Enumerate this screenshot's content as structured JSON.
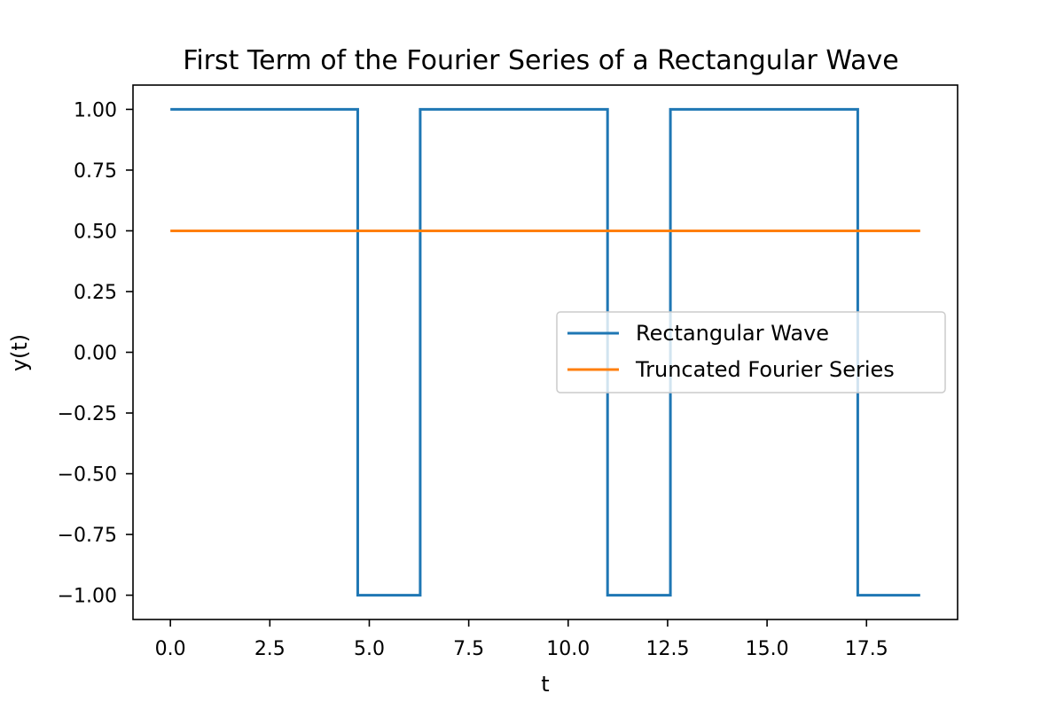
{
  "chart_data": {
    "type": "line",
    "title": "First Term of the Fourier Series of a Rectangular Wave",
    "xlabel": "t",
    "ylabel": "y(t)",
    "xlim": [
      -0.94,
      19.79
    ],
    "ylim": [
      -1.1,
      1.1
    ],
    "xticks": [
      0.0,
      2.5,
      5.0,
      7.5,
      10.0,
      12.5,
      15.0,
      17.5
    ],
    "xtick_labels": [
      "0.0",
      "2.5",
      "5.0",
      "7.5",
      "10.0",
      "12.5",
      "15.0",
      "17.5"
    ],
    "yticks": [
      1.0,
      0.75,
      0.5,
      0.25,
      0.0,
      -0.25,
      -0.5,
      -0.75,
      -1.0
    ],
    "ytick_labels": [
      "1.00",
      "0.75",
      "0.50",
      "0.25",
      "0.00",
      "−0.25",
      "−0.50",
      "−0.75",
      "−1.00"
    ],
    "grid": false,
    "legend_position": "center-right",
    "series": [
      {
        "name": "Rectangular Wave",
        "color": "#1f77b4",
        "x": [
          0.0,
          4.71,
          4.71,
          6.28,
          6.28,
          10.99,
          10.99,
          12.57,
          12.57,
          17.28,
          17.28,
          18.85
        ],
        "y": [
          1.0,
          1.0,
          -1.0,
          -1.0,
          1.0,
          1.0,
          -1.0,
          -1.0,
          1.0,
          1.0,
          -1.0,
          -1.0
        ]
      },
      {
        "name": "Truncated Fourier Series",
        "color": "#ff7f0e",
        "x": [
          0.0,
          18.85
        ],
        "y": [
          0.5,
          0.5
        ]
      }
    ]
  }
}
